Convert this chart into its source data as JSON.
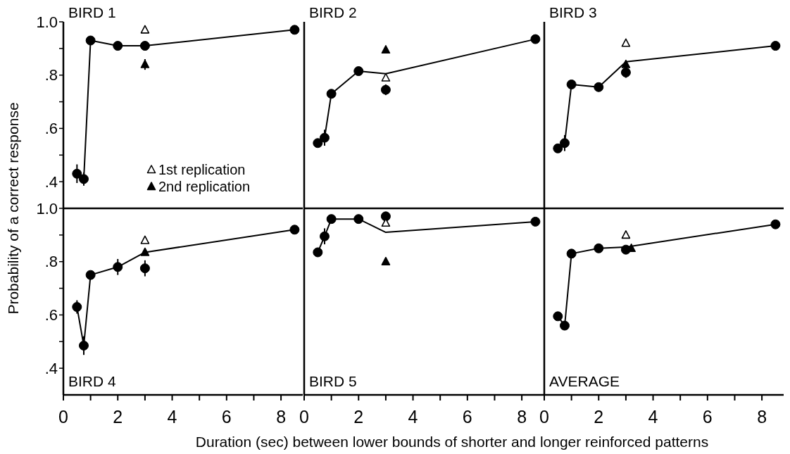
{
  "chart_data": [
    {
      "type": "line",
      "title": "BIRD 1",
      "ylabel": "Probability of a correct response",
      "xlim": [
        0,
        8.8
      ],
      "ylim": [
        0.3,
        1.0
      ],
      "yticks": [
        {
          "value": 0.4,
          "label": ".4"
        },
        {
          "value": 0.5,
          "label": null
        },
        {
          "value": 0.6,
          "label": ".6"
        },
        {
          "value": 0.7,
          "label": null
        },
        {
          "value": 0.8,
          "label": ".8"
        },
        {
          "value": 0.9,
          "label": null
        },
        {
          "value": 1.0,
          "label": "1.0"
        }
      ],
      "tick_labels": "y",
      "legend": "bottom",
      "series": [
        {
          "type": "line",
          "color": "#000000",
          "marker": "none",
          "line_style": "solid",
          "x": [
            0.5,
            0.75,
            1,
            2,
            3,
            8.5
          ],
          "values": [
            0.43,
            0.41,
            0.93,
            0.91,
            0.91,
            0.97
          ]
        },
        {
          "type": "scatter",
          "color": "#000000",
          "marker": "circle",
          "x": [
            0.5,
            0.75,
            1,
            2,
            3,
            8.5
          ],
          "values": [
            0.43,
            0.41,
            0.93,
            0.91,
            0.91,
            0.97
          ],
          "errors": [
            0.035,
            0.025,
            null,
            null,
            null,
            null
          ]
        },
        {
          "type": "scatter",
          "name": "1st replication",
          "color": "#ffffff",
          "marker": "triangle",
          "x": [
            3
          ],
          "values": [
            0.97
          ]
        },
        {
          "type": "scatter",
          "name": "2nd replication",
          "color": "#000000",
          "marker": "triangle",
          "x": [
            3
          ],
          "values": [
            0.84
          ],
          "errors": [
            0.02
          ]
        }
      ]
    },
    {
      "type": "line",
      "title": "BIRD 2",
      "xlim": [
        0,
        8.8
      ],
      "ylim": [
        0.3,
        1.0
      ],
      "tick_labels": false,
      "series": [
        {
          "type": "line",
          "color": "#000000",
          "marker": "none",
          "line_style": "solid",
          "x": [
            0.5,
            0.75,
            1,
            2,
            3,
            8.5
          ],
          "values": [
            0.545,
            0.565,
            0.73,
            0.815,
            0.805,
            0.935
          ]
        },
        {
          "type": "scatter",
          "color": "#000000",
          "marker": "circle",
          "x": [
            0.5,
            0.75,
            1,
            2,
            3,
            8.5
          ],
          "values": [
            0.545,
            0.565,
            0.73,
            0.815,
            0.745,
            0.935
          ],
          "errors": [
            0.015,
            0.03,
            null,
            null,
            0.02,
            null
          ]
        },
        {
          "type": "scatter",
          "color": "#ffffff",
          "marker": "triangle",
          "x": [
            3
          ],
          "values": [
            0.79
          ]
        },
        {
          "type": "scatter",
          "color": "#000000",
          "marker": "triangle",
          "x": [
            3
          ],
          "values": [
            0.895
          ]
        }
      ]
    },
    {
      "type": "line",
      "title": "BIRD 3",
      "xlim": [
        0,
        8.8
      ],
      "ylim": [
        0.3,
        1.0
      ],
      "tick_labels": false,
      "series": [
        {
          "type": "line",
          "color": "#000000",
          "marker": "none",
          "line_style": "solid",
          "x": [
            0.5,
            0.75,
            1,
            2,
            3,
            8.5
          ],
          "values": [
            0.525,
            0.545,
            0.765,
            0.755,
            0.85,
            0.91
          ]
        },
        {
          "type": "scatter",
          "color": "#000000",
          "marker": "circle",
          "x": [
            0.5,
            0.75,
            1,
            2,
            3,
            8.5
          ],
          "values": [
            0.525,
            0.545,
            0.765,
            0.755,
            0.81,
            0.91
          ],
          "errors": [
            0.015,
            0.03,
            null,
            null,
            0.02,
            null
          ]
        },
        {
          "type": "scatter",
          "color": "#ffffff",
          "marker": "triangle",
          "x": [
            3
          ],
          "values": [
            0.92
          ]
        },
        {
          "type": "scatter",
          "color": "#000000",
          "marker": "triangle",
          "x": [
            3
          ],
          "values": [
            0.84
          ]
        }
      ]
    },
    {
      "type": "line",
      "title": "BIRD 4",
      "xlim": [
        0,
        8.8
      ],
      "xticks": [
        0,
        {
          "value": 1,
          "label": null
        },
        2,
        {
          "value": 3,
          "label": null
        },
        4,
        {
          "value": 5,
          "label": null
        },
        6,
        {
          "value": 7,
          "label": null
        },
        8
      ],
      "ylim": [
        0.3,
        1.0
      ],
      "yticks": [
        {
          "value": 0.4,
          "label": ".4"
        },
        {
          "value": 0.5,
          "label": null
        },
        {
          "value": 0.6,
          "label": ".6"
        },
        {
          "value": 0.7,
          "label": null
        },
        {
          "value": 0.8,
          "label": ".8"
        },
        {
          "value": 0.9,
          "label": null
        },
        {
          "value": 1.0,
          "label": "1.0"
        }
      ],
      "series": [
        {
          "type": "line",
          "color": "#000000",
          "marker": "none",
          "line_style": "solid",
          "x": [
            0.5,
            0.75,
            1,
            2,
            3,
            8.5
          ],
          "values": [
            0.63,
            0.485,
            0.75,
            0.78,
            0.835,
            0.92
          ]
        },
        {
          "type": "scatter",
          "color": "#000000",
          "marker": "circle",
          "x": [
            0.5,
            0.75,
            1,
            2,
            3,
            8.5
          ],
          "values": [
            0.63,
            0.485,
            0.75,
            0.78,
            0.775,
            0.92
          ],
          "errors": [
            0.025,
            0.035,
            null,
            0.03,
            0.03,
            null
          ]
        },
        {
          "type": "scatter",
          "color": "#ffffff",
          "marker": "triangle",
          "x": [
            3
          ],
          "values": [
            0.88
          ]
        },
        {
          "type": "scatter",
          "color": "#000000",
          "marker": "triangle",
          "x": [
            3
          ],
          "values": [
            0.835
          ]
        }
      ]
    },
    {
      "type": "line",
      "title": "BIRD 5",
      "xlabel": "Duration (sec) between lower bounds of shorter and longer reinforced patterns",
      "xlim": [
        0,
        8.8
      ],
      "xticks": [
        0,
        {
          "value": 1,
          "label": null
        },
        2,
        {
          "value": 3,
          "label": null
        },
        4,
        {
          "value": 5,
          "label": null
        },
        6,
        {
          "value": 7,
          "label": null
        },
        8
      ],
      "ylim": [
        0.3,
        1.0
      ],
      "tick_labels": "x",
      "series": [
        {
          "type": "line",
          "color": "#000000",
          "marker": "none",
          "line_style": "solid",
          "x": [
            0.5,
            0.75,
            1,
            2,
            3,
            8.5
          ],
          "values": [
            0.835,
            0.895,
            0.96,
            0.96,
            0.91,
            0.95
          ]
        },
        {
          "type": "scatter",
          "color": "#000000",
          "marker": "circle",
          "x": [
            0.5,
            0.75,
            1,
            2,
            3,
            8.5
          ],
          "values": [
            0.835,
            0.895,
            0.96,
            0.96,
            0.97,
            0.95
          ],
          "errors": [
            0.015,
            0.03,
            null,
            null,
            null,
            null
          ]
        },
        {
          "type": "scatter",
          "color": "#ffffff",
          "marker": "triangle",
          "x": [
            3
          ],
          "values": [
            0.945
          ]
        },
        {
          "type": "scatter",
          "color": "#000000",
          "marker": "triangle",
          "x": [
            3
          ],
          "values": [
            0.8
          ]
        }
      ]
    },
    {
      "type": "line",
      "title": "AVERAGE",
      "xlim": [
        0,
        8.8
      ],
      "xticks": [
        0,
        {
          "value": 1,
          "label": null
        },
        2,
        {
          "value": 3,
          "label": null
        },
        4,
        {
          "value": 5,
          "label": null
        },
        6,
        {
          "value": 7,
          "label": null
        },
        8
      ],
      "ylim": [
        0.3,
        1.0
      ],
      "tick_labels": "x",
      "series": [
        {
          "type": "line",
          "color": "#000000",
          "marker": "none",
          "line_style": "solid",
          "x": [
            0.5,
            0.75,
            1,
            2,
            3,
            8.5
          ],
          "values": [
            0.595,
            0.56,
            0.83,
            0.85,
            0.855,
            0.94
          ]
        },
        {
          "type": "scatter",
          "color": "#000000",
          "marker": "circle",
          "x": [
            0.5,
            0.75,
            1,
            2,
            3,
            8.5
          ],
          "values": [
            0.595,
            0.56,
            0.83,
            0.85,
            0.845,
            0.94
          ],
          "errors": [
            null,
            0.015,
            null,
            null,
            null,
            null
          ]
        },
        {
          "type": "scatter",
          "color": "#ffffff",
          "marker": "triangle",
          "x": [
            3
          ],
          "values": [
            0.9
          ]
        },
        {
          "type": "scatter",
          "color": "#000000",
          "marker": "triangle",
          "x": [
            3.2
          ],
          "values": [
            0.85
          ]
        }
      ]
    }
  ]
}
